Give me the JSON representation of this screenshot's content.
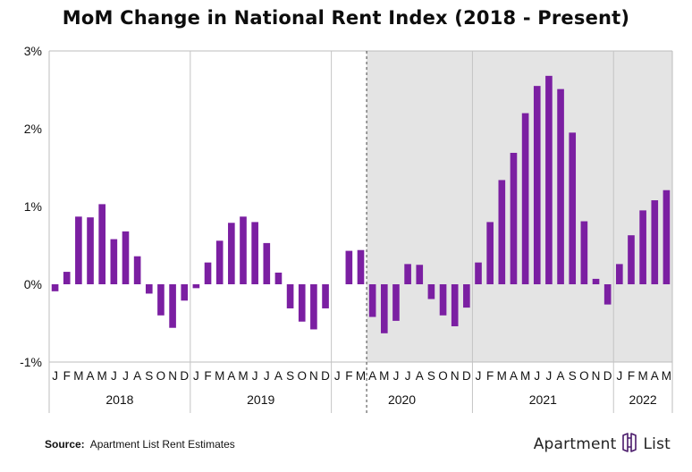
{
  "chart_data": {
    "type": "bar",
    "title": "MoM Change in National Rent Index (2018 - Present)",
    "xlabel": "",
    "ylabel": "",
    "ylim": [
      -1,
      3
    ],
    "yticks": [
      "3%",
      "2%",
      "1%",
      "0%",
      "-1%"
    ],
    "ytick_values": [
      3,
      2,
      1,
      0,
      -1
    ],
    "grid": "vertical year separators",
    "shaded_period_start": "Apr 2020",
    "bar_color": "#7b1fa2",
    "shade_color": "#e4e4e4",
    "years": [
      {
        "year": "2018",
        "months": 12
      },
      {
        "year": "2019",
        "months": 12
      },
      {
        "year": "2020",
        "months": 12
      },
      {
        "year": "2021",
        "months": 12
      },
      {
        "year": "2022",
        "months": 5
      }
    ],
    "month_labels": [
      "J",
      "F",
      "M",
      "A",
      "M",
      "J",
      "J",
      "A",
      "S",
      "O",
      "N",
      "D"
    ],
    "values": [
      -0.09,
      0.16,
      0.87,
      0.86,
      1.03,
      0.58,
      0.68,
      0.36,
      -0.12,
      -0.4,
      -0.56,
      -0.21,
      -0.05,
      0.28,
      0.56,
      0.79,
      0.87,
      0.8,
      0.53,
      0.15,
      -0.31,
      -0.48,
      -0.58,
      -0.31,
      0.0,
      0.43,
      0.44,
      -0.42,
      -0.63,
      -0.47,
      0.26,
      0.25,
      -0.19,
      -0.4,
      -0.54,
      -0.3,
      0.28,
      0.8,
      1.34,
      1.69,
      2.2,
      2.55,
      2.68,
      2.51,
      1.95,
      0.81,
      0.07,
      -0.26,
      0.26,
      0.63,
      0.95,
      1.08,
      1.21
    ]
  },
  "footer": {
    "source_label": "Source:",
    "source_text": "Apartment List Rent Estimates",
    "brand_left": "Apartment",
    "brand_right": "List",
    "brand_color": "#4a1a6b"
  }
}
